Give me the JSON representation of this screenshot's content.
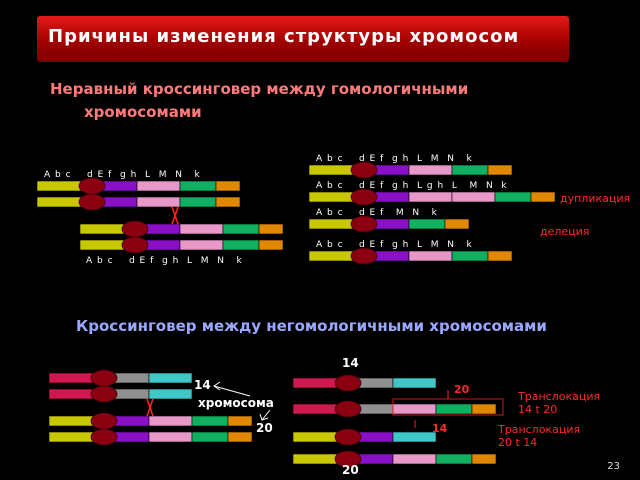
{
  "title": "Причины изменения структуры хромосом",
  "section1": {
    "heading_line1": "Неравный кроссинговер между гомологичными",
    "heading_line2": "хромосомами",
    "label_top_left": "A b c    d E f  g h  L  M  N   k",
    "label_bottom_left": "A b c    d E f  g h  L  M  N   k",
    "label_r1": "A b c    d E f  g h  L  M  N   k",
    "label_r2": "A b c    d E f  g h  L g h  L   M  N  k",
    "label_r3": "A b c    d E f   M  N   k",
    "label_r4": "A b c    d E f  g h  L  M  N   k",
    "duplication": "дупликация",
    "deletion": "делеция"
  },
  "section2": {
    "heading": "Кроссинговер между негомологичными хромосомами",
    "num_14_top": "14",
    "num_14_left": "14",
    "chromosome_label": "хромосома",
    "num_20_left": "20",
    "num_20_right": "20",
    "num_14_right": "14",
    "num_20_bottom": "20",
    "translocation1_line1": "Транслокация",
    "translocation1_line2": "14 t 20",
    "translocation2_line1": "Транслокация",
    "translocation2_line2": "20 t 14"
  },
  "page_number": "23",
  "colors": {
    "yellow": "#c8c800",
    "purple": "#8a10c8",
    "pink": "#e898c8",
    "green": "#10b060",
    "orange": "#e08800",
    "crimson": "#d01850",
    "grey": "#909090",
    "cyan": "#40c8c8",
    "centromere": "#8a0010"
  }
}
